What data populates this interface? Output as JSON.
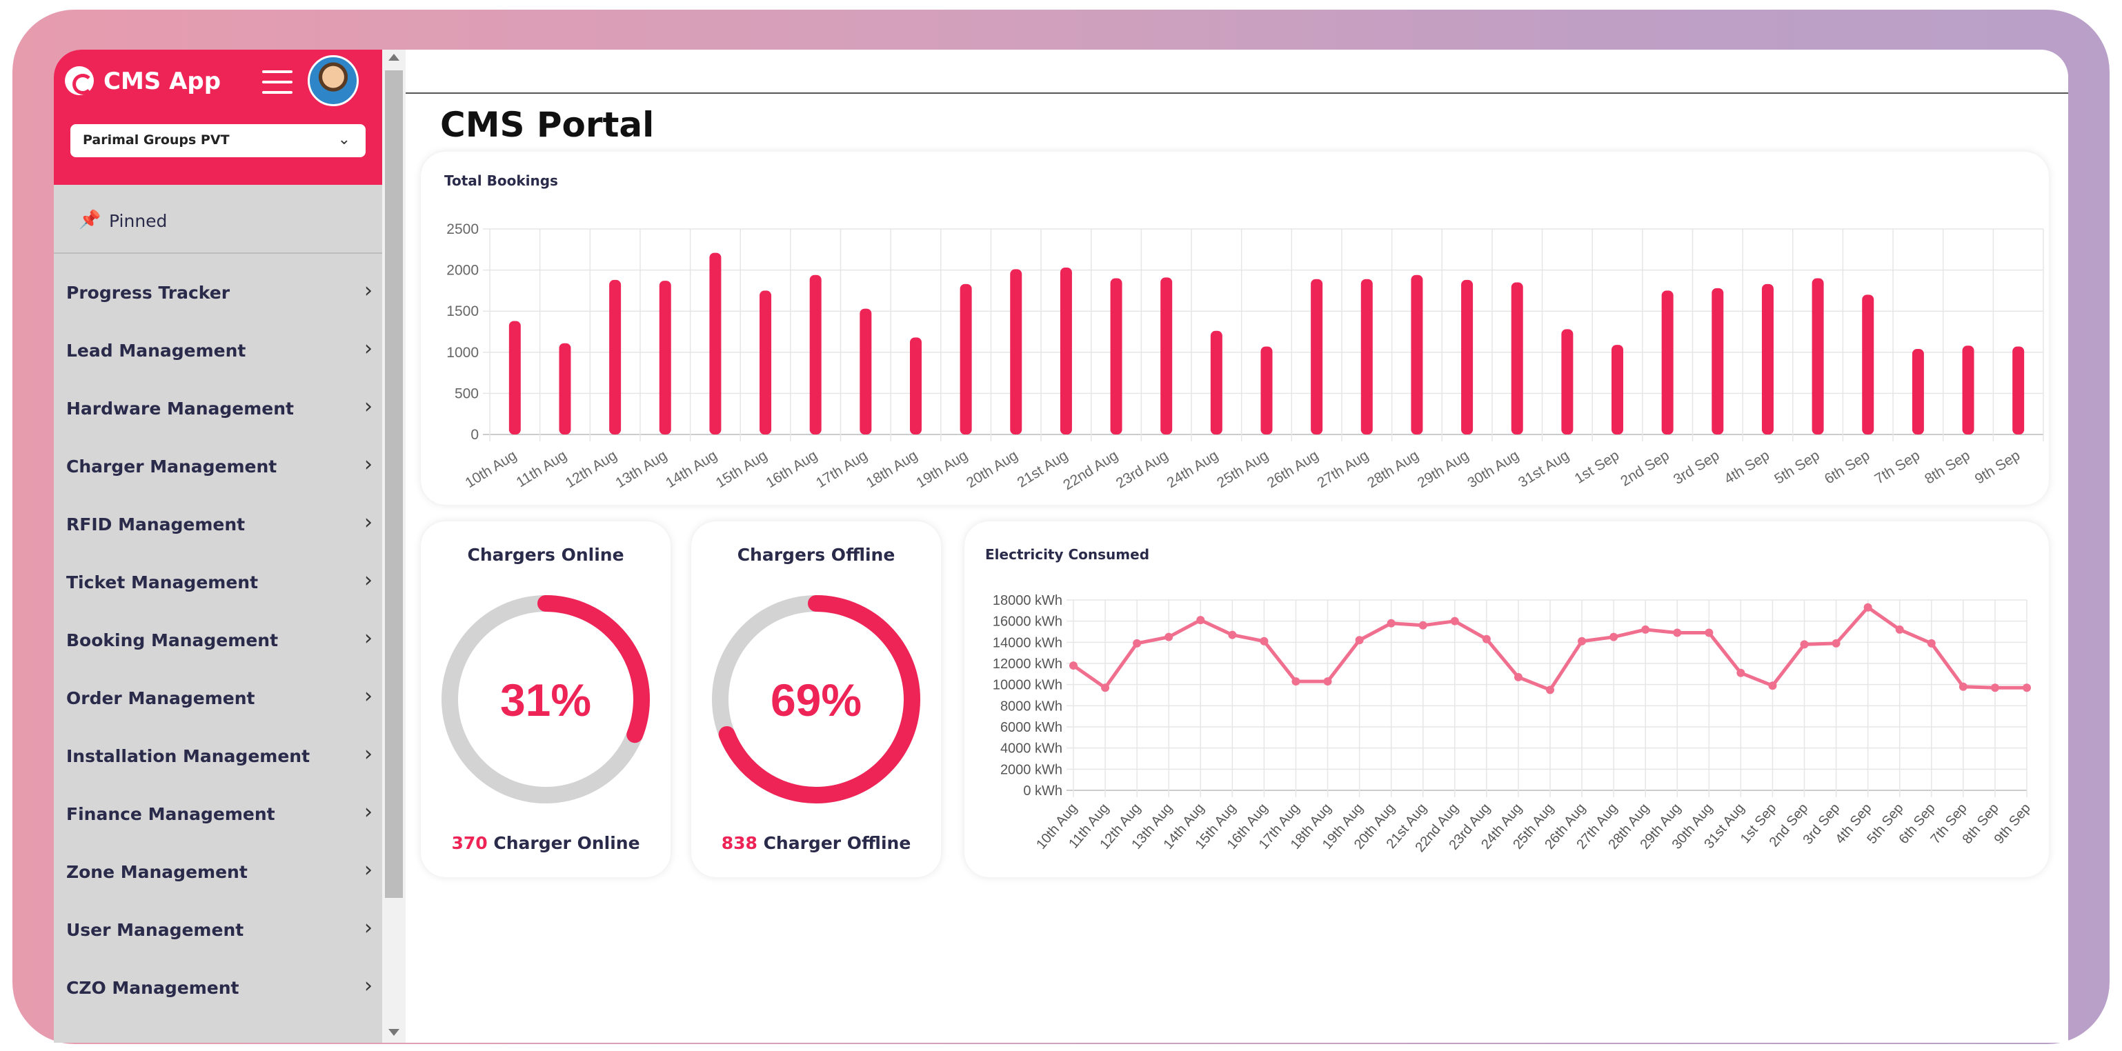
{
  "sidebar": {
    "app_title": "CMS App",
    "org_select": {
      "value": "Parimal Groups PVT"
    },
    "pinned_label": "Pinned",
    "items": [
      {
        "label": "Progress Tracker"
      },
      {
        "label": "Lead Management"
      },
      {
        "label": "Hardware Management"
      },
      {
        "label": "Charger Management"
      },
      {
        "label": "RFID Management"
      },
      {
        "label": "Ticket Management"
      },
      {
        "label": "Booking Management"
      },
      {
        "label": "Order Management"
      },
      {
        "label": "Installation Management"
      },
      {
        "label": "Finance Management"
      },
      {
        "label": "Zone Management"
      },
      {
        "label": "User Management"
      },
      {
        "label": "CZO Management"
      }
    ]
  },
  "main": {
    "page_title": "CMS Portal",
    "bookings_title": "Total Bookings",
    "electricity_title": "Electricity Consumed",
    "chargers_online": {
      "title": "Chargers Online",
      "percent_label": "31%",
      "percent": 31,
      "count": "370",
      "label": " Charger Online"
    },
    "chargers_offline": {
      "title": "Chargers Offline",
      "percent_label": "69%",
      "percent": 69,
      "count": "838",
      "label": " Charger Offline"
    }
  },
  "colors": {
    "accent": "#ee2356",
    "line": "#f06e8e",
    "gauge_track": "#d3d3d3",
    "sidebar_bg": "#d6d6d6"
  },
  "icons": {
    "logo": "app-logo-icon",
    "menu": "hamburger-icon",
    "pin": "pin-icon",
    "chevron": "chevron-right-icon"
  },
  "chart_data": [
    {
      "type": "bar",
      "title": "Total Bookings",
      "categories": [
        "10th Aug",
        "11th Aug",
        "12th Aug",
        "13th Aug",
        "14th Aug",
        "15th Aug",
        "16th Aug",
        "17th Aug",
        "18th Aug",
        "19th Aug",
        "20th Aug",
        "21st Aug",
        "22nd Aug",
        "23rd Aug",
        "24th Aug",
        "25th Aug",
        "26th Aug",
        "27th Aug",
        "28th Aug",
        "29th Aug",
        "30th Aug",
        "31st Aug",
        "1st Sep",
        "2nd Sep",
        "3rd Sep",
        "4th Sep",
        "5th Sep",
        "6th Sep",
        "7th Sep",
        "8th Sep",
        "9th Sep"
      ],
      "values": [
        1380,
        1110,
        1880,
        1870,
        2210,
        1750,
        1940,
        1530,
        1180,
        1830,
        2010,
        2030,
        1900,
        1910,
        1260,
        1070,
        1890,
        1890,
        1940,
        1880,
        1850,
        1280,
        1090,
        1750,
        1780,
        1830,
        1900,
        1700,
        1040,
        1080,
        1070
      ],
      "ylim": [
        0,
        2500
      ],
      "yticks": [
        "0",
        "500",
        "1000",
        "1500",
        "2000",
        "2500"
      ],
      "grid": true
    },
    {
      "type": "line",
      "title": "Electricity Consumed",
      "categories": [
        "10th Aug",
        "11th Aug",
        "12th Aug",
        "13th Aug",
        "14th Aug",
        "15th Aug",
        "16th Aug",
        "17th Aug",
        "18th Aug",
        "19th Aug",
        "20th Aug",
        "21st Aug",
        "22nd Aug",
        "23rd Aug",
        "24th Aug",
        "25th Aug",
        "26th Aug",
        "27th Aug",
        "28th Aug",
        "29th Aug",
        "30th Aug",
        "31st Aug",
        "1st Sep",
        "2nd Sep",
        "3rd Sep",
        "4th Sep",
        "5th Sep",
        "6th Sep",
        "7th Sep",
        "8th Sep",
        "9th Sep"
      ],
      "values": [
        11800,
        9700,
        13900,
        14500,
        16100,
        14700,
        14100,
        10300,
        10300,
        14200,
        15800,
        15600,
        16000,
        14300,
        10700,
        9500,
        14100,
        14500,
        15200,
        14900,
        14900,
        11100,
        9900,
        13800,
        13900,
        17300,
        15200,
        13900,
        9800,
        9700,
        9700
      ],
      "ylim": [
        0,
        18000
      ],
      "yticks": [
        "0 kWh",
        "2000 kWh",
        "4000 kWh",
        "6000 kWh",
        "8000 kWh",
        "10000 kWh",
        "12000 kWh",
        "14000 kWh",
        "16000 kWh",
        "18000 kWh"
      ],
      "unit": "kWh",
      "grid": true
    }
  ]
}
